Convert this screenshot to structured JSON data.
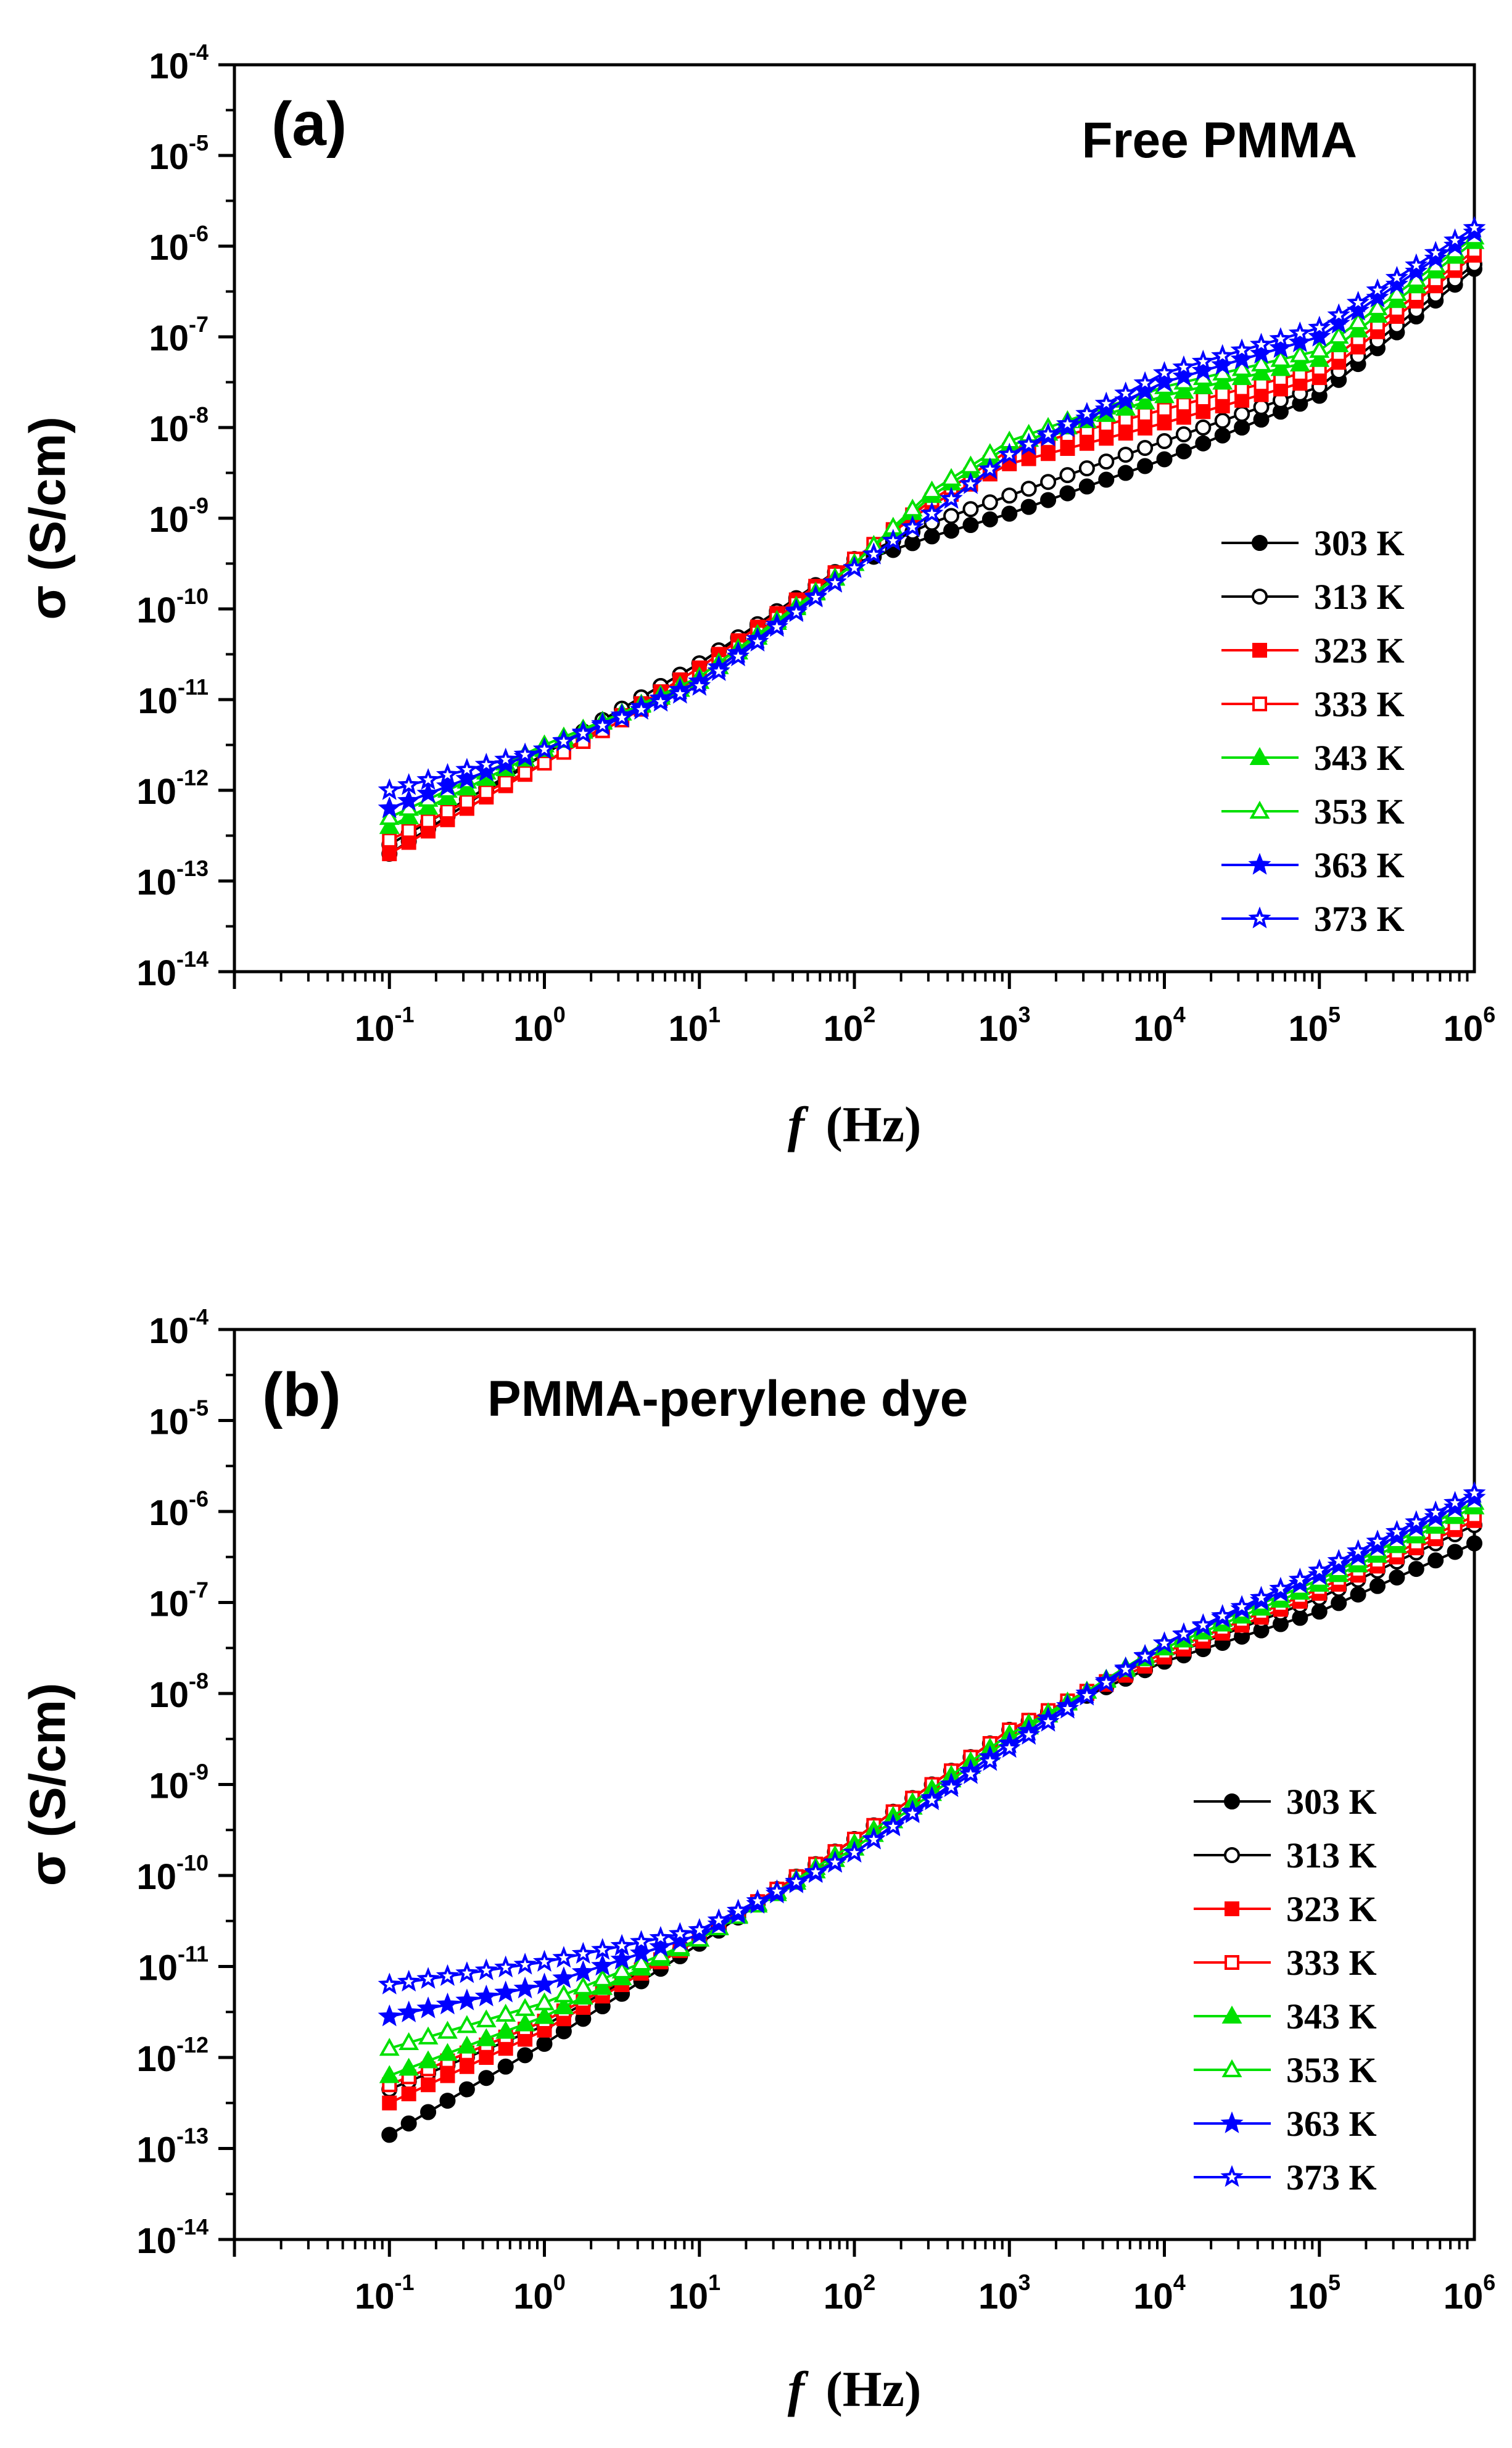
{
  "figure": {
    "x_label_var": "f",
    "x_label_unit": "(Hz)",
    "y_label": "σ (S/cm)"
  },
  "chart_data": [
    {
      "type": "line",
      "panel_label": "(a)",
      "title": "Free PMMA",
      "x_scale": "log",
      "y_scale": "log",
      "xlim": [
        0.01,
        1000000
      ],
      "ylim": [
        1e-14,
        0.0001
      ],
      "x_ticks": [
        {
          "b": "10",
          "e": "-1"
        },
        {
          "b": "10",
          "e": "0"
        },
        {
          "b": "10",
          "e": "1"
        },
        {
          "b": "10",
          "e": "2"
        },
        {
          "b": "10",
          "e": "3"
        },
        {
          "b": "10",
          "e": "4"
        },
        {
          "b": "10",
          "e": "5"
        },
        {
          "b": "10",
          "e": "6"
        }
      ],
      "y_ticks": [
        {
          "b": "10",
          "e": "-14"
        },
        {
          "b": "10",
          "e": "-13"
        },
        {
          "b": "10",
          "e": "-12"
        },
        {
          "b": "10",
          "e": "-11"
        },
        {
          "b": "10",
          "e": "-10"
        },
        {
          "b": "10",
          "e": "-9"
        },
        {
          "b": "10",
          "e": "-8"
        },
        {
          "b": "10",
          "e": "-7"
        },
        {
          "b": "10",
          "e": "-6"
        },
        {
          "b": "10",
          "e": "-5"
        },
        {
          "b": "10",
          "e": "-4"
        }
      ],
      "legend_position": "right",
      "x_log10": [
        -1,
        0,
        1,
        2,
        2.5,
        3,
        4,
        5,
        6
      ],
      "series": [
        {
          "name": "303 K",
          "color": "#000000",
          "marker": "circle",
          "filled": true,
          "log10_y": [
            -12.7,
            -11.6,
            -10.6,
            -9.5,
            -9.2,
            -8.95,
            -8.35,
            -7.65,
            -6.25
          ]
        },
        {
          "name": "313 K",
          "color": "#000000",
          "marker": "circle",
          "filled": false,
          "log10_y": [
            -12.6,
            -11.6,
            -10.6,
            -9.45,
            -9.05,
            -8.75,
            -8.15,
            -7.55,
            -6.2
          ]
        },
        {
          "name": "323 K",
          "color": "#ff0000",
          "marker": "square",
          "filled": true,
          "log10_y": [
            -12.7,
            -11.7,
            -10.65,
            -9.45,
            -8.85,
            -8.4,
            -7.95,
            -7.45,
            -6.1
          ]
        },
        {
          "name": "333 K",
          "color": "#ff0000",
          "marker": "square",
          "filled": false,
          "log10_y": [
            -12.55,
            -11.7,
            -10.75,
            -9.45,
            -8.8,
            -8.25,
            -7.8,
            -7.35,
            -6.05
          ]
        },
        {
          "name": "343 K",
          "color": "#00e000",
          "marker": "triangle",
          "filled": true,
          "log10_y": [
            -12.4,
            -11.55,
            -10.75,
            -9.5,
            -8.75,
            -8.2,
            -7.65,
            -7.25,
            -5.95
          ]
        },
        {
          "name": "353 K",
          "color": "#00e000",
          "marker": "triangle",
          "filled": false,
          "log10_y": [
            -12.3,
            -11.5,
            -10.8,
            -9.5,
            -8.7,
            -8.15,
            -7.55,
            -7.15,
            -5.9
          ]
        },
        {
          "name": "363 K",
          "color": "#0000ff",
          "marker": "star",
          "filled": true,
          "log10_y": [
            -12.2,
            -11.55,
            -10.8,
            -9.55,
            -8.95,
            -8.3,
            -7.5,
            -7.0,
            -5.85
          ]
        },
        {
          "name": "373 K",
          "color": "#0000ff",
          "marker": "star",
          "filled": false,
          "log10_y": [
            -12.0,
            -11.55,
            -10.85,
            -9.55,
            -8.95,
            -8.3,
            -7.4,
            -6.9,
            -5.8
          ]
        }
      ]
    },
    {
      "type": "line",
      "panel_label": "(b)",
      "title": "PMMA-perylene dye",
      "x_scale": "log",
      "y_scale": "log",
      "xlim": [
        0.01,
        1000000
      ],
      "ylim": [
        1e-14,
        0.0001
      ],
      "x_ticks": [
        {
          "b": "10",
          "e": "-1"
        },
        {
          "b": "10",
          "e": "0"
        },
        {
          "b": "10",
          "e": "1"
        },
        {
          "b": "10",
          "e": "2"
        },
        {
          "b": "10",
          "e": "3"
        },
        {
          "b": "10",
          "e": "4"
        },
        {
          "b": "10",
          "e": "5"
        },
        {
          "b": "10",
          "e": "6"
        }
      ],
      "y_ticks": [
        {
          "b": "10",
          "e": "-14"
        },
        {
          "b": "10",
          "e": "-13"
        },
        {
          "b": "10",
          "e": "-12"
        },
        {
          "b": "10",
          "e": "-11"
        },
        {
          "b": "10",
          "e": "-10"
        },
        {
          "b": "10",
          "e": "-9"
        },
        {
          "b": "10",
          "e": "-8"
        },
        {
          "b": "10",
          "e": "-7"
        },
        {
          "b": "10",
          "e": "-6"
        },
        {
          "b": "10",
          "e": "-5"
        },
        {
          "b": "10",
          "e": "-4"
        }
      ],
      "legend_position": "right",
      "x_log10": [
        -1,
        0,
        1,
        2,
        3,
        4,
        5,
        6
      ],
      "series": [
        {
          "name": "303 K",
          "color": "#000000",
          "marker": "circle",
          "filled": true,
          "log10_y": [
            -12.85,
            -11.85,
            -10.75,
            -9.6,
            -8.4,
            -7.65,
            -7.1,
            -6.35
          ]
        },
        {
          "name": "313 K",
          "color": "#000000",
          "marker": "circle",
          "filled": false,
          "log10_y": [
            -12.35,
            -11.65,
            -10.7,
            -9.6,
            -8.4,
            -7.6,
            -6.95,
            -6.15
          ]
        },
        {
          "name": "323 K",
          "color": "#ff0000",
          "marker": "square",
          "filled": true,
          "log10_y": [
            -12.5,
            -11.7,
            -10.7,
            -9.6,
            -8.4,
            -7.6,
            -6.9,
            -6.1
          ]
        },
        {
          "name": "333 K",
          "color": "#ff0000",
          "marker": "square",
          "filled": false,
          "log10_y": [
            -12.3,
            -11.6,
            -10.7,
            -9.6,
            -8.4,
            -7.55,
            -6.85,
            -6.05
          ]
        },
        {
          "name": "343 K",
          "color": "#00e000",
          "marker": "triangle",
          "filled": true,
          "log10_y": [
            -12.2,
            -11.55,
            -10.7,
            -9.65,
            -8.45,
            -7.5,
            -6.8,
            -5.95
          ]
        },
        {
          "name": "353 K",
          "color": "#00e000",
          "marker": "triangle",
          "filled": false,
          "log10_y": [
            -11.9,
            -11.4,
            -10.7,
            -9.7,
            -8.5,
            -7.45,
            -6.75,
            -5.9
          ]
        },
        {
          "name": "363 K",
          "color": "#0000ff",
          "marker": "star",
          "filled": true,
          "log10_y": [
            -11.55,
            -11.2,
            -10.65,
            -9.75,
            -8.55,
            -7.45,
            -6.7,
            -5.85
          ]
        },
        {
          "name": "373 K",
          "color": "#0000ff",
          "marker": "star",
          "filled": false,
          "log10_y": [
            -11.2,
            -10.95,
            -10.6,
            -9.75,
            -8.6,
            -7.45,
            -6.65,
            -5.8
          ]
        }
      ]
    }
  ]
}
